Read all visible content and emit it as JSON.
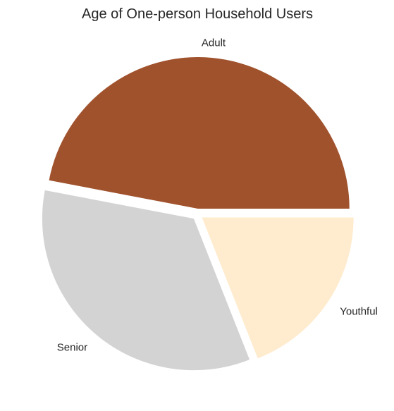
{
  "chart_data": {
    "type": "pie",
    "title": "Age of One-person Household Users",
    "categories": [
      "Adult",
      "Senior",
      "Youthful"
    ],
    "values": [
      47,
      34,
      19
    ],
    "colors": [
      "#a0522d",
      "#d3d3d3",
      "#ffebcd"
    ],
    "legend": "none",
    "labels_on_slices": "outside"
  }
}
